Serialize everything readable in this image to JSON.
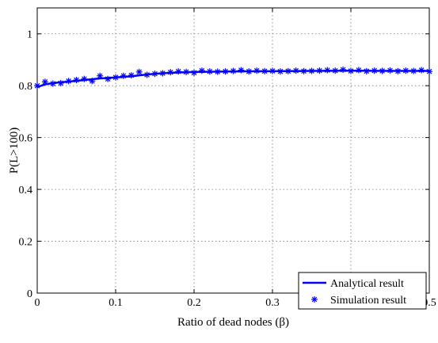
{
  "chart_data": {
    "type": "line",
    "xlabel": "Ratio of dead nodes (β)",
    "ylabel": "P(L>100)",
    "xlim": [
      0,
      0.5
    ],
    "ylim": [
      0,
      1.1
    ],
    "xticks": [
      0,
      0.1,
      0.2,
      0.3,
      0.4,
      0.5
    ],
    "xtick_labels": [
      "0",
      "0.1",
      "0.2",
      "0.3",
      "0.4",
      "0.5"
    ],
    "yticks": [
      0,
      0.2,
      0.4,
      0.6,
      0.8,
      1
    ],
    "ytick_labels": [
      "0",
      "0.2",
      "0.4",
      "0.6",
      "0.8",
      "1"
    ],
    "grid": true,
    "legend_position": "bottom-right",
    "series": [
      {
        "name": "Analytical result",
        "style": "line",
        "color": "#0000ff",
        "x": [
          0,
          0.01,
          0.02,
          0.03,
          0.04,
          0.05,
          0.06,
          0.07,
          0.08,
          0.09,
          0.1,
          0.11,
          0.12,
          0.13,
          0.14,
          0.15,
          0.16,
          0.17,
          0.18,
          0.19,
          0.2,
          0.25,
          0.3,
          0.35,
          0.4,
          0.45,
          0.5
        ],
        "y": [
          0.795,
          0.805,
          0.81,
          0.813,
          0.816,
          0.819,
          0.822,
          0.825,
          0.828,
          0.83,
          0.832,
          0.834,
          0.836,
          0.84,
          0.843,
          0.846,
          0.848,
          0.85,
          0.851,
          0.852,
          0.853,
          0.855,
          0.856,
          0.857,
          0.858,
          0.857,
          0.857
        ]
      },
      {
        "name": "Simulation result",
        "style": "marker",
        "marker": "asterisk",
        "color": "#0000ff",
        "x": [
          0,
          0.01,
          0.02,
          0.03,
          0.04,
          0.05,
          0.06,
          0.07,
          0.08,
          0.09,
          0.1,
          0.11,
          0.12,
          0.13,
          0.14,
          0.15,
          0.16,
          0.17,
          0.18,
          0.19,
          0.2,
          0.21,
          0.22,
          0.23,
          0.24,
          0.25,
          0.26,
          0.27,
          0.28,
          0.29,
          0.3,
          0.31,
          0.32,
          0.33,
          0.34,
          0.35,
          0.36,
          0.37,
          0.38,
          0.39,
          0.4,
          0.41,
          0.42,
          0.43,
          0.44,
          0.45,
          0.46,
          0.47,
          0.48,
          0.49,
          0.5
        ],
        "y": [
          0.8,
          0.815,
          0.808,
          0.81,
          0.818,
          0.822,
          0.826,
          0.818,
          0.838,
          0.826,
          0.832,
          0.838,
          0.84,
          0.853,
          0.842,
          0.846,
          0.848,
          0.852,
          0.855,
          0.853,
          0.85,
          0.858,
          0.855,
          0.854,
          0.855,
          0.857,
          0.86,
          0.855,
          0.858,
          0.856,
          0.857,
          0.855,
          0.856,
          0.858,
          0.856,
          0.857,
          0.858,
          0.86,
          0.858,
          0.862,
          0.857,
          0.86,
          0.856,
          0.858,
          0.857,
          0.859,
          0.856,
          0.858,
          0.857,
          0.86,
          0.855
        ]
      }
    ]
  }
}
